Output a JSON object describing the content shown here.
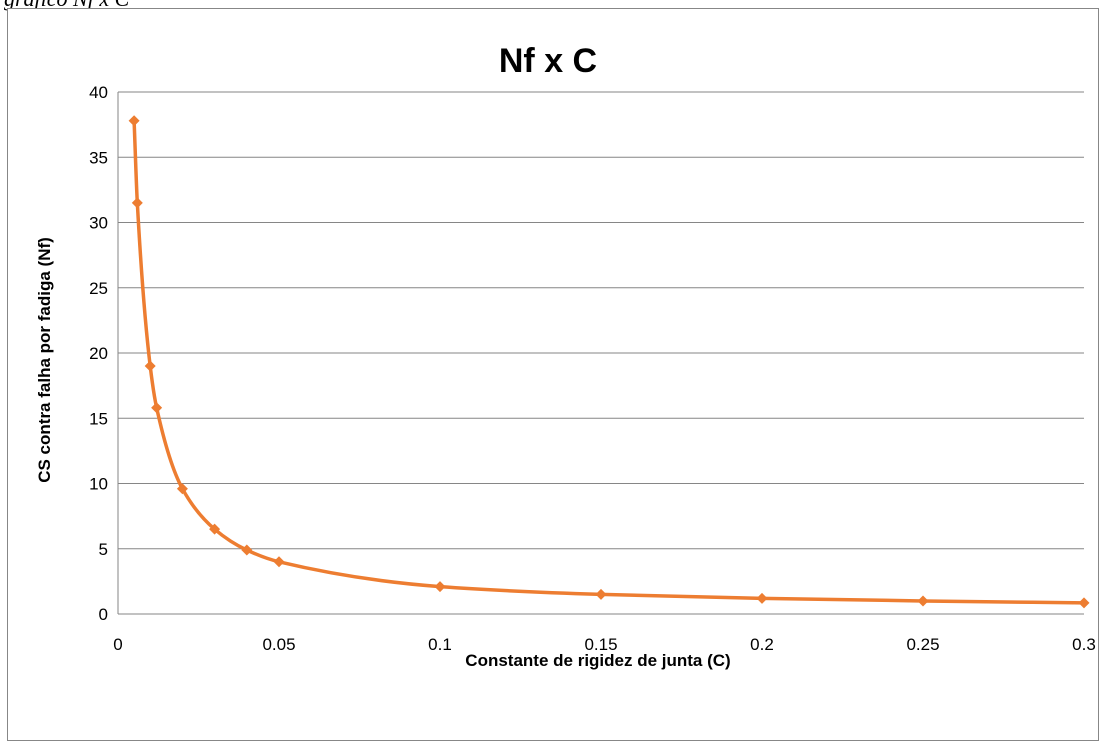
{
  "caption_fragment": "gráfico Nf x C",
  "colors": {
    "series": "#ED7D31",
    "grid": "#868686",
    "frame": "#878787"
  },
  "chart_data": {
    "type": "line",
    "title": "Nf x C",
    "xlabel": "Constante de rigidez de junta (C)",
    "ylabel": "CS contra falha por fadiga (Nf)",
    "xlim": [
      0,
      0.3
    ],
    "ylim": [
      0,
      40
    ],
    "x_ticks": [
      "0",
      "0.05",
      "0.1",
      "0.15",
      "0.2",
      "0.25",
      "0.3"
    ],
    "y_ticks": [
      "0",
      "5",
      "10",
      "15",
      "20",
      "25",
      "30",
      "35",
      "40"
    ],
    "x_tick_values": [
      0,
      0.05,
      0.1,
      0.15,
      0.2,
      0.25,
      0.3
    ],
    "y_tick_values": [
      0,
      5,
      10,
      15,
      20,
      25,
      30,
      35,
      40
    ],
    "grid": "horizontal",
    "legend": "none",
    "smooth": true,
    "marker": "diamond",
    "series": [
      {
        "x": [
          0.005,
          0.006,
          0.01,
          0.012,
          0.02,
          0.03,
          0.04,
          0.05,
          0.1,
          0.15,
          0.2,
          0.25,
          0.3
        ],
        "y": [
          37.8,
          31.5,
          19.0,
          15.8,
          9.6,
          6.5,
          4.9,
          4.0,
          2.1,
          1.5,
          1.2,
          1.0,
          0.85
        ]
      }
    ]
  }
}
